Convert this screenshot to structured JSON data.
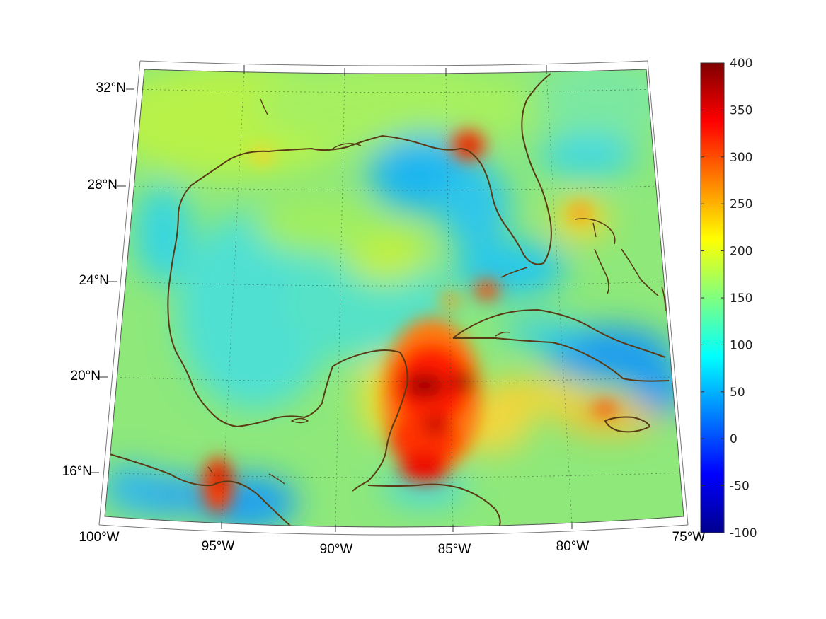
{
  "map": {
    "projection": "conic",
    "lon_range": [
      -100,
      -75
    ],
    "lat_range": [
      14,
      32
    ],
    "grid": true,
    "coastline_color": "#5a3a14"
  },
  "axes": {
    "lat_ticks": [
      {
        "lat": 32,
        "label": "32°N"
      },
      {
        "lat": 28,
        "label": "28°N"
      },
      {
        "lat": 24,
        "label": "24°N"
      },
      {
        "lat": 20,
        "label": "20°N"
      },
      {
        "lat": 16,
        "label": "16°N"
      }
    ],
    "lon_ticks": [
      {
        "lon": -100,
        "label": "100°W"
      },
      {
        "lon": -95,
        "label": "95°W"
      },
      {
        "lon": -90,
        "label": "90°W"
      },
      {
        "lon": -85,
        "label": "85°W"
      },
      {
        "lon": -80,
        "label": "80°W"
      },
      {
        "lon": -75,
        "label": "75°W"
      }
    ]
  },
  "colorbar": {
    "colormap": "jet",
    "min": -100,
    "max": 400,
    "ticks": [
      "400",
      "350",
      "300",
      "250",
      "200",
      "150",
      "100",
      "50",
      "0",
      "-50",
      "-100"
    ]
  },
  "chart_data": {
    "type": "heatmap",
    "field": "gridded values over the Gulf of Mexico and Caribbean",
    "background_level": 140,
    "hotspots": [
      {
        "region": "Yucatan / western Caribbean",
        "lon": -86,
        "lat": 19.5,
        "value": 380
      },
      {
        "region": "Yucatan south",
        "lon": -86,
        "lat": 16.5,
        "value": 330
      },
      {
        "region": "Florida panhandle",
        "lon": -84.5,
        "lat": 29.6,
        "value": 360
      },
      {
        "region": "Isthmus of Tehuantepec",
        "lon": -95,
        "lat": 15.7,
        "value": 330
      },
      {
        "region": "north of Cuba",
        "lon": -83.5,
        "lat": 23.6,
        "value": 290
      },
      {
        "region": "south of Jamaica",
        "lon": -78.5,
        "lat": 18.5,
        "value": 280
      },
      {
        "region": "Bahamas",
        "lon": -79,
        "lat": 26.5,
        "value": 240
      }
    ],
    "lows": [
      {
        "region": "northeast Gulf",
        "lon": -86.5,
        "lat": 28,
        "value": 60
      },
      {
        "region": "Gulf of Tehuantepec",
        "lon": -93,
        "lat": 15,
        "value": 40
      },
      {
        "region": "southeast of Cuba",
        "lon": -76.5,
        "lat": 20.5,
        "value": 50
      },
      {
        "region": "eastern Pacific",
        "lon": -99,
        "lat": 14.8,
        "value": 60
      }
    ]
  }
}
